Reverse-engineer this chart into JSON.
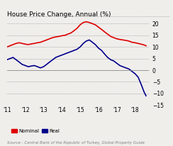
{
  "title": "House Price Change, Annual (%)",
  "source": "Source : Central Bank of the Republic of Turkey, Global Property Guide",
  "xlim": [
    2011.0,
    2018.75
  ],
  "ylim": [
    -15,
    22
  ],
  "yticks": [
    -15,
    -10,
    -5,
    0,
    5,
    10,
    15,
    20
  ],
  "xtick_labels": [
    "'11",
    "'12",
    "'13",
    "'14",
    "'15",
    "'16",
    "'17",
    "'18"
  ],
  "xtick_positions": [
    2011,
    2012,
    2013,
    2014,
    2015,
    2016,
    2017,
    2018
  ],
  "nominal_color": "#dd0000",
  "real_color": "#00008b",
  "background_color": "#f0eeeb",
  "nominal_x": [
    2011.0,
    2011.17,
    2011.33,
    2011.5,
    2011.67,
    2011.83,
    2012.0,
    2012.17,
    2012.33,
    2012.5,
    2012.67,
    2012.83,
    2013.0,
    2013.17,
    2013.33,
    2013.5,
    2013.67,
    2013.83,
    2014.0,
    2014.17,
    2014.33,
    2014.5,
    2014.67,
    2014.83,
    2015.0,
    2015.17,
    2015.33,
    2015.5,
    2015.67,
    2015.83,
    2016.0,
    2016.17,
    2016.33,
    2016.5,
    2016.67,
    2016.83,
    2017.0,
    2017.17,
    2017.33,
    2017.5,
    2017.67,
    2017.83,
    2018.0,
    2018.17,
    2018.33,
    2018.5,
    2018.6
  ],
  "nominal_y": [
    10.0,
    10.5,
    11.0,
    11.5,
    11.8,
    11.5,
    11.2,
    11.0,
    11.3,
    11.5,
    11.8,
    12.0,
    12.5,
    13.0,
    13.5,
    14.0,
    14.3,
    14.5,
    14.8,
    15.0,
    15.5,
    16.0,
    17.0,
    18.0,
    19.5,
    20.5,
    20.8,
    20.5,
    20.0,
    19.5,
    18.5,
    17.5,
    16.5,
    15.5,
    14.5,
    14.0,
    13.5,
    13.2,
    13.0,
    12.8,
    12.5,
    12.0,
    11.8,
    11.5,
    11.2,
    10.8,
    10.5
  ],
  "real_x": [
    2011.0,
    2011.17,
    2011.33,
    2011.5,
    2011.67,
    2011.83,
    2012.0,
    2012.17,
    2012.33,
    2012.5,
    2012.67,
    2012.83,
    2013.0,
    2013.17,
    2013.33,
    2013.5,
    2013.67,
    2013.83,
    2014.0,
    2014.17,
    2014.33,
    2014.5,
    2014.67,
    2014.83,
    2015.0,
    2015.17,
    2015.33,
    2015.5,
    2015.67,
    2015.83,
    2016.0,
    2016.17,
    2016.33,
    2016.5,
    2016.67,
    2016.83,
    2017.0,
    2017.17,
    2017.33,
    2017.5,
    2017.67,
    2017.83,
    2018.0,
    2018.17,
    2018.33,
    2018.5,
    2018.6
  ],
  "real_y": [
    4.5,
    5.0,
    5.5,
    4.5,
    3.5,
    2.5,
    2.0,
    1.5,
    1.8,
    2.0,
    1.5,
    1.0,
    1.5,
    2.5,
    3.5,
    4.5,
    5.5,
    6.0,
    6.5,
    7.0,
    7.5,
    8.0,
    8.5,
    9.0,
    10.0,
    11.5,
    12.5,
    13.0,
    12.0,
    11.0,
    9.5,
    8.5,
    7.0,
    5.5,
    4.5,
    4.0,
    3.0,
    2.0,
    1.5,
    1.0,
    0.5,
    -0.5,
    -1.5,
    -3.0,
    -6.0,
    -9.5,
    -11.0
  ]
}
